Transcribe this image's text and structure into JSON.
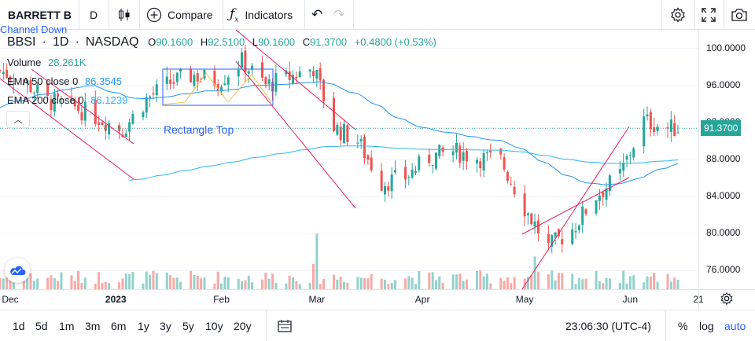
{
  "toolbar": {
    "symbol": "BARRETT B",
    "interval": "D",
    "compare_label": "Compare",
    "indicators_label": "Indicators"
  },
  "legend": {
    "symbol": "BBSI",
    "interval": "1D",
    "exchange": "NASDAQ",
    "o_label": "O",
    "o_value": "90.1600",
    "h_label": "H",
    "h_value": "92.5100",
    "l_label": "L",
    "l_value": "90.1600",
    "c_label": "C",
    "c_value": "91.3700",
    "change": "+0.4800 (+0.53%)",
    "volume_label": "Volume",
    "volume_value": "28.261K",
    "ema50_label": "EMA 50 close 0",
    "ema50_value": "86.3545",
    "ema200_label": "EMA 200 close 0",
    "ema200_value": "86.1239"
  },
  "drawings": {
    "channel_label": "Channel Down",
    "rectangle_label": "Rectangle Top"
  },
  "colors": {
    "up": "#26a69a",
    "down": "#ef5350",
    "ema50": "#2196f3",
    "ema200": "#29b6f6",
    "pattern": "#e91e63",
    "last_price": "#26a69a"
  },
  "bottombar": {
    "ranges": [
      "1d",
      "5d",
      "1m",
      "3m",
      "6m",
      "1y",
      "3y",
      "5y",
      "10y",
      "20y"
    ],
    "clock": "23:06:30 (UTC-4)",
    "percent": "%",
    "log": "log",
    "auto": "auto"
  },
  "chart_data": {
    "type": "candlestick",
    "last_price": "91.3700",
    "y_ticks": [
      "100.0000",
      "96.0000",
      "92.0000",
      "88.0000",
      "84.0000",
      "80.0000",
      "76.0000"
    ],
    "x_ticks": [
      "Dec",
      "2023",
      "Feb",
      "Mar",
      "Apr",
      "May",
      "Jun",
      "21"
    ],
    "ylim": [
      74,
      102
    ],
    "x_range": [
      "2022-11-28",
      "2023-06-21"
    ],
    "closes": [
      {
        "d": "2022-11-28",
        "c": 97.6
      },
      {
        "d": "2022-12-05",
        "c": 96.5
      },
      {
        "d": "2022-12-12",
        "c": 94.3
      },
      {
        "d": "2022-12-19",
        "c": 93.8
      },
      {
        "d": "2022-12-27",
        "c": 92.5
      },
      {
        "d": "2023-01-03",
        "c": 91.2
      },
      {
        "d": "2023-01-10",
        "c": 94.5
      },
      {
        "d": "2023-01-17",
        "c": 96.3
      },
      {
        "d": "2023-01-24",
        "c": 97.1
      },
      {
        "d": "2023-01-31",
        "c": 96.4
      },
      {
        "d": "2023-02-07",
        "c": 98.6
      },
      {
        "d": "2023-02-14",
        "c": 96.0
      },
      {
        "d": "2023-02-21",
        "c": 96.9
      },
      {
        "d": "2023-02-28",
        "c": 97.9
      },
      {
        "d": "2023-03-06",
        "c": 91.5
      },
      {
        "d": "2023-03-13",
        "c": 90.0
      },
      {
        "d": "2023-03-20",
        "c": 85.5
      },
      {
        "d": "2023-03-27",
        "c": 86.1
      },
      {
        "d": "2023-04-03",
        "c": 88.2
      },
      {
        "d": "2023-04-10",
        "c": 88.9
      },
      {
        "d": "2023-04-17",
        "c": 88.2
      },
      {
        "d": "2023-04-24",
        "c": 87.9
      },
      {
        "d": "2023-05-01",
        "c": 82.8
      },
      {
        "d": "2023-05-08",
        "c": 78.5
      },
      {
        "d": "2023-05-15",
        "c": 80.5
      },
      {
        "d": "2023-05-22",
        "c": 84.1
      },
      {
        "d": "2023-05-29",
        "c": 86.3
      },
      {
        "d": "2023-06-05",
        "c": 92.2
      },
      {
        "d": "2023-06-12",
        "c": 91.37
      }
    ]
  }
}
